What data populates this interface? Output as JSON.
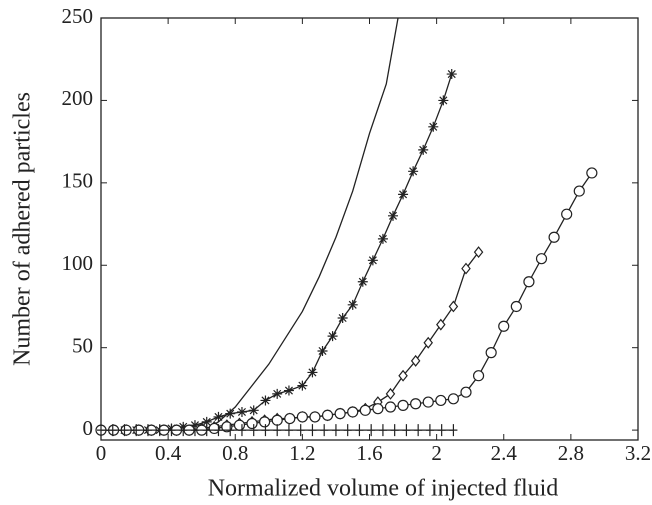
{
  "chart_data": {
    "type": "line",
    "x_label": "Normalized volume of injected fluid",
    "y_label": "Number of adhered particles",
    "xlim": [
      0,
      3.2
    ],
    "xticks": [
      0,
      0.4,
      0.8,
      1.2,
      1.6,
      2,
      2.4,
      2.8,
      3.2
    ],
    "ylim": [
      -6,
      250
    ],
    "yticks": [
      0,
      50,
      100,
      150,
      200,
      250
    ],
    "series": [
      {
        "color": "#222",
        "marker": "none",
        "x": [
          0,
          0.6,
          0.65,
          0.7,
          0.8,
          0.9,
          1.0,
          1.1,
          1.2,
          1.3,
          1.4,
          1.5,
          1.6,
          1.7,
          1.77
        ],
        "values": [
          0,
          0,
          2,
          5,
          14,
          27,
          40,
          56,
          72,
          93,
          117,
          145,
          180,
          210,
          250
        ]
      },
      {
        "color": "#222",
        "marker": "star",
        "x": [
          0,
          0.07,
          0.14,
          0.21,
          0.28,
          0.35,
          0.42,
          0.49,
          0.56,
          0.63,
          0.7,
          0.77,
          0.84,
          0.91,
          0.98,
          1.05,
          1.12,
          1.2,
          1.26,
          1.32,
          1.38,
          1.44,
          1.5,
          1.56,
          1.62,
          1.68,
          1.74,
          1.8,
          1.86,
          1.92,
          1.98,
          2.04,
          2.09
        ],
        "values": [
          0,
          0,
          0,
          0,
          0,
          0,
          1,
          2,
          3,
          5,
          8,
          10,
          11,
          12,
          18,
          22,
          24,
          27,
          35,
          48,
          57,
          68,
          76,
          90,
          103,
          116,
          130,
          143,
          157,
          170,
          184,
          200,
          216
        ]
      },
      {
        "color": "#222",
        "marker": "diamond",
        "x": [
          0,
          0.075,
          0.15,
          0.225,
          0.3,
          0.375,
          0.45,
          0.525,
          0.6,
          0.675,
          0.75,
          0.825,
          0.9,
          0.975,
          1.05,
          1.125,
          1.2,
          1.275,
          1.35,
          1.425,
          1.5,
          1.575,
          1.65,
          1.725,
          1.8,
          1.875,
          1.95,
          2.025,
          2.1,
          2.175,
          2.25
        ],
        "values": [
          0,
          0,
          0,
          0,
          0,
          0,
          0,
          0,
          1,
          2,
          3,
          4,
          5,
          6,
          7,
          7,
          8,
          8,
          9,
          10,
          11,
          13,
          17,
          22,
          33,
          42,
          53,
          64,
          75,
          98,
          108
        ]
      },
      {
        "color": "#222",
        "marker": "circle",
        "x": [
          0,
          0.075,
          0.15,
          0.225,
          0.3,
          0.375,
          0.45,
          0.525,
          0.6,
          0.675,
          0.75,
          0.825,
          0.9,
          0.975,
          1.05,
          1.125,
          1.2,
          1.275,
          1.35,
          1.425,
          1.5,
          1.575,
          1.65,
          1.725,
          1.8,
          1.875,
          1.95,
          2.025,
          2.1,
          2.175,
          2.25,
          2.325,
          2.4,
          2.475,
          2.55,
          2.625,
          2.7,
          2.775,
          2.85,
          2.925
        ],
        "values": [
          0,
          0,
          0,
          0,
          0,
          0,
          0,
          0,
          0,
          1,
          2,
          3,
          4,
          5,
          6,
          7,
          8,
          8,
          9,
          10,
          11,
          12,
          13,
          14,
          15,
          16,
          17,
          18,
          19,
          23,
          33,
          47,
          63,
          75,
          90,
          104,
          117,
          131,
          145,
          156
        ]
      },
      {
        "color": "#222",
        "marker": "plus",
        "x": [
          0,
          0.07,
          0.14,
          0.21,
          0.28,
          0.35,
          0.42,
          0.49,
          0.56,
          0.63,
          0.7,
          0.77,
          0.84,
          0.91,
          0.98,
          1.05,
          1.12,
          1.19,
          1.26,
          1.33,
          1.4,
          1.47,
          1.54,
          1.61,
          1.68,
          1.75,
          1.82,
          1.89,
          1.96,
          2.03,
          2.1
        ],
        "values": [
          0,
          0,
          0,
          0,
          0,
          0,
          0,
          0,
          0,
          0,
          0,
          0,
          0,
          0,
          0,
          0,
          0,
          0,
          0,
          0,
          0,
          0,
          0,
          0,
          0,
          0,
          0,
          0,
          0,
          0,
          0
        ]
      }
    ]
  }
}
